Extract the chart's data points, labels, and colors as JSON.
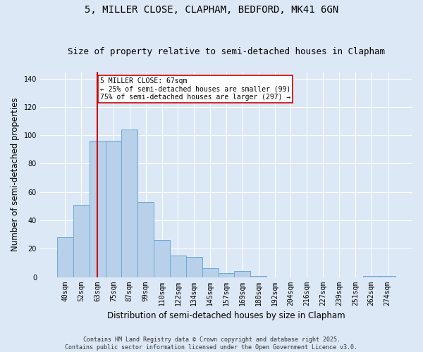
{
  "title1": "5, MILLER CLOSE, CLAPHAM, BEDFORD, MK41 6GN",
  "title2": "Size of property relative to semi-detached houses in Clapham",
  "xlabel": "Distribution of semi-detached houses by size in Clapham",
  "ylabel": "Number of semi-detached properties",
  "bin_labels": [
    "40sqm",
    "52sqm",
    "63sqm",
    "75sqm",
    "87sqm",
    "99sqm",
    "110sqm",
    "122sqm",
    "134sqm",
    "145sqm",
    "157sqm",
    "169sqm",
    "180sqm",
    "192sqm",
    "204sqm",
    "216sqm",
    "227sqm",
    "239sqm",
    "251sqm",
    "262sqm",
    "274sqm"
  ],
  "bin_values": [
    28,
    51,
    96,
    96,
    104,
    53,
    26,
    15,
    14,
    6,
    3,
    4,
    1,
    0,
    0,
    0,
    0,
    0,
    0,
    1,
    1
  ],
  "bar_color": "#b8d0ea",
  "bar_edge_color": "#6aaad4",
  "vline_x_index": 2,
  "vline_color": "#cc0000",
  "annotation_text": "5 MILLER CLOSE: 67sqm\n← 25% of semi-detached houses are smaller (99)\n75% of semi-detached houses are larger (297) →",
  "annotation_box_color": "white",
  "annotation_box_edge_color": "#cc0000",
  "footer_text": "Contains HM Land Registry data © Crown copyright and database right 2025.\nContains public sector information licensed under the Open Government Licence v3.0.",
  "ylim": [
    0,
    145
  ],
  "yticks": [
    0,
    20,
    40,
    60,
    80,
    100,
    120,
    140
  ],
  "bg_color": "#dce8f5",
  "grid_color": "#ffffff",
  "title_fontsize": 10,
  "subtitle_fontsize": 9,
  "tick_fontsize": 7,
  "label_fontsize": 8.5,
  "footer_fontsize": 6
}
